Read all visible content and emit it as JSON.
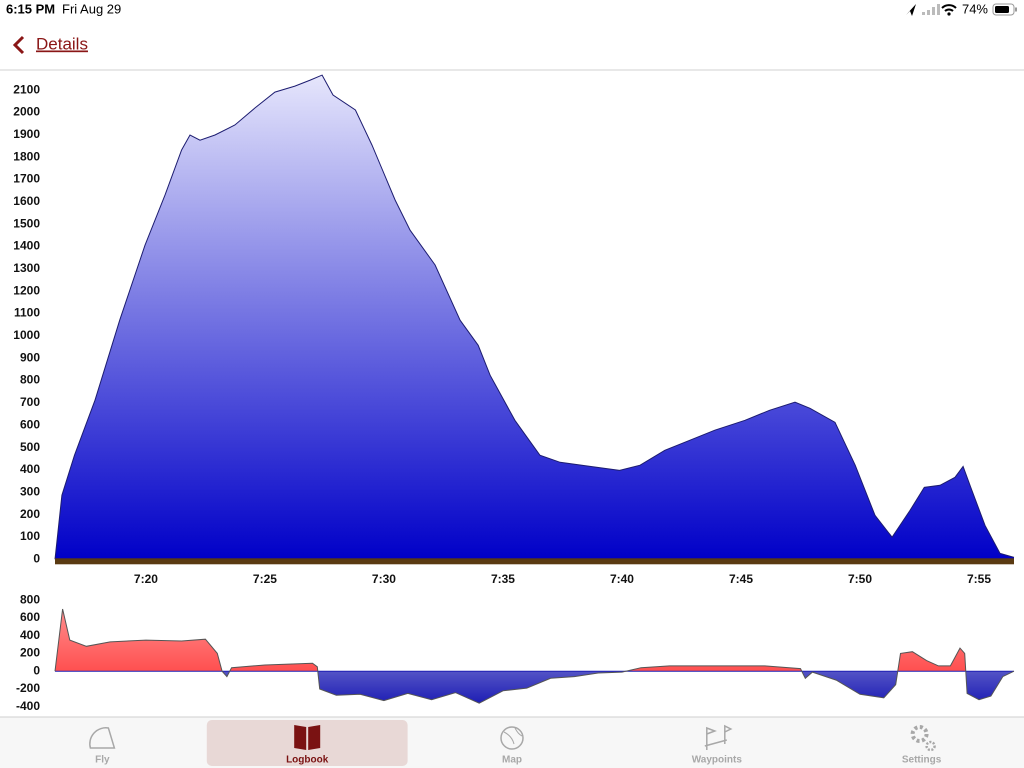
{
  "status_bar": {
    "time": "6:15 PM",
    "date": "Fri Aug 29",
    "battery": "74%"
  },
  "nav": {
    "back_label": "Details"
  },
  "chart_data": [
    {
      "type": "area",
      "colors": [
        "#e6e6fc",
        "#0000c8"
      ],
      "line_color": "#1c1c70",
      "x": [
        16.18,
        16.47,
        17.0,
        17.86,
        18.9,
        19.96,
        20.8,
        21.5,
        21.85,
        22.27,
        22.9,
        23.74,
        24.58,
        25.42,
        26.26,
        26.9,
        27.4,
        27.86,
        28.8,
        29.5,
        30.47,
        31.1,
        32.15,
        33.2,
        33.96,
        34.46,
        35.5,
        36.55,
        37.4,
        38.66,
        39.9,
        40.76,
        41.8,
        42.86,
        43.9,
        45.17,
        46.2,
        47.27,
        47.9,
        48.95,
        49.8,
        50.63,
        51.35,
        52.1,
        52.7,
        53.36,
        53.99,
        54.33,
        54.62,
        55.25,
        55.88,
        56.47
      ],
      "values": [
        0,
        287,
        466,
        712,
        1070,
        1406,
        1630,
        1832,
        1899,
        1876,
        1899,
        1944,
        2020,
        2091,
        2118,
        2145,
        2167,
        2078,
        2011,
        1854,
        1608,
        1473,
        1317,
        1070,
        958,
        824,
        622,
        466,
        434,
        416,
        398,
        421,
        488,
        533,
        578,
        622,
        667,
        703,
        676,
        613,
        421,
        197,
        99,
        219,
        322,
        331,
        367,
        416,
        331,
        152,
        27,
        9
      ],
      "xlim": [
        16.18,
        56.47
      ],
      "ylim": [
        -30,
        2190
      ],
      "xticks": [
        {
          "value": 20,
          "label": "7:20"
        },
        {
          "value": 25,
          "label": "7:25"
        },
        {
          "value": 30,
          "label": "7:30"
        },
        {
          "value": 35,
          "label": "7:35"
        },
        {
          "value": 40,
          "label": "7:40"
        },
        {
          "value": 45,
          "label": "7:45"
        },
        {
          "value": 50,
          "label": "7:50"
        },
        {
          "value": 55,
          "label": "7:55"
        }
      ],
      "yticks": [
        0,
        100,
        200,
        300,
        400,
        500,
        600,
        700,
        800,
        900,
        1000,
        1100,
        1200,
        1300,
        1400,
        1500,
        1600,
        1700,
        1800,
        1900,
        2000,
        2100
      ],
      "ground_color": "#5a3a12"
    },
    {
      "type": "area",
      "positive_color": "#ff3030",
      "negative_color": "#1e1eb4",
      "line_color": "#555555",
      "x": [
        16.18,
        16.5,
        16.8,
        17.5,
        18.5,
        20.0,
        21.5,
        22.5,
        23.0,
        23.2,
        23.4,
        23.6,
        25.0,
        27.0,
        27.2,
        27.3,
        28.0,
        29.0,
        30.0,
        31.0,
        32.0,
        33.0,
        34.0,
        35.0,
        36.0,
        37.0,
        38.0,
        39.0,
        40.0,
        40.8,
        42.0,
        44.0,
        46.0,
        47.5,
        47.7,
        48.0,
        49.0,
        50.0,
        51.0,
        51.5,
        51.7,
        52.2,
        52.8,
        53.3,
        53.8,
        54.2,
        54.4,
        54.5,
        55.0,
        55.5,
        56.0,
        56.47
      ],
      "values": [
        0,
        700,
        350,
        280,
        330,
        350,
        340,
        360,
        200,
        0,
        -60,
        40,
        70,
        90,
        50,
        -200,
        -270,
        -260,
        -330,
        -250,
        -320,
        -240,
        -360,
        -220,
        -190,
        -80,
        -60,
        -20,
        -10,
        40,
        60,
        60,
        60,
        30,
        -80,
        -10,
        -100,
        -260,
        -300,
        -150,
        200,
        220,
        120,
        60,
        60,
        260,
        200,
        -250,
        -320,
        -280,
        -60,
        0
      ],
      "xlim": [
        16.18,
        56.47
      ],
      "ylim": [
        -470,
        880
      ],
      "yticks": [
        -400,
        -200,
        0,
        200,
        400,
        600,
        800
      ]
    }
  ],
  "tab_bar": {
    "tabs": [
      "Fly",
      "Logbook",
      "Map",
      "Waypoints",
      "Settings"
    ],
    "selected": 1
  }
}
